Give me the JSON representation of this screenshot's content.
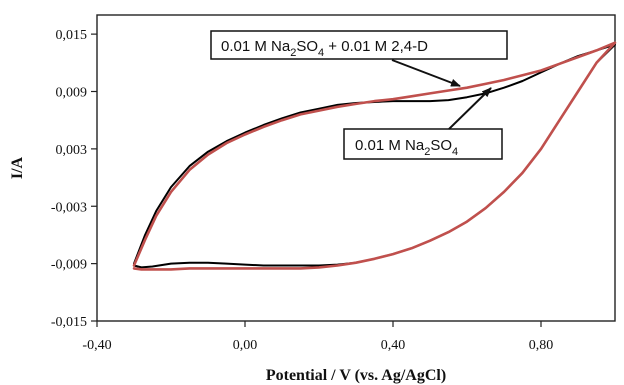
{
  "chart_data": {
    "type": "line",
    "xlabel": "Potential / V (vs. Ag/AgCl)",
    "ylabel": "I/A",
    "xlim": [
      -0.4,
      1.0
    ],
    "ylim": [
      -0.015,
      0.017
    ],
    "x_ticks": [
      {
        "value": -0.4,
        "label": "-0,40"
      },
      {
        "value": 0.0,
        "label": "0,00"
      },
      {
        "value": 0.4,
        "label": "0,40"
      },
      {
        "value": 0.8,
        "label": "0,80"
      }
    ],
    "y_ticks": [
      {
        "value": 0.015,
        "label": "0,015"
      },
      {
        "value": 0.009,
        "label": "0,009"
      },
      {
        "value": 0.003,
        "label": "0,003"
      },
      {
        "value": -0.003,
        "label": "-0,003"
      },
      {
        "value": -0.009,
        "label": "-0,009"
      },
      {
        "value": -0.015,
        "label": "-0,015"
      }
    ],
    "grid": false,
    "series": [
      {
        "name": "0.01 M Na2SO4",
        "color": "#000000",
        "x": [
          -0.3,
          -0.27,
          -0.24,
          -0.2,
          -0.15,
          -0.1,
          -0.05,
          0.0,
          0.05,
          0.1,
          0.15,
          0.2,
          0.25,
          0.3,
          0.35,
          0.4,
          0.45,
          0.5,
          0.55,
          0.6,
          0.65,
          0.7,
          0.75,
          0.8,
          0.85,
          0.9,
          0.95,
          1.0,
          0.95,
          0.9,
          0.85,
          0.8,
          0.75,
          0.7,
          0.65,
          0.6,
          0.55,
          0.5,
          0.45,
          0.4,
          0.35,
          0.3,
          0.25,
          0.2,
          0.15,
          0.1,
          0.05,
          0.0,
          -0.05,
          -0.1,
          -0.15,
          -0.2,
          -0.25,
          -0.28,
          -0.3
        ],
        "y": [
          -0.009,
          -0.006,
          -0.0035,
          -0.001,
          0.0012,
          0.0027,
          0.0038,
          0.0047,
          0.0055,
          0.0062,
          0.0068,
          0.0072,
          0.0076,
          0.0078,
          0.0079,
          0.008,
          0.008,
          0.008,
          0.0081,
          0.0084,
          0.0088,
          0.0094,
          0.0101,
          0.011,
          0.0119,
          0.0127,
          0.0133,
          0.0139,
          0.012,
          0.009,
          0.006,
          0.003,
          0.0005,
          -0.0015,
          -0.0032,
          -0.0046,
          -0.0057,
          -0.0066,
          -0.0074,
          -0.008,
          -0.0085,
          -0.0089,
          -0.0091,
          -0.0092,
          -0.0092,
          -0.0092,
          -0.0092,
          -0.0091,
          -0.009,
          -0.0089,
          -0.0089,
          -0.009,
          -0.0093,
          -0.0094,
          -0.0092
        ]
      },
      {
        "name": "0.01 M Na2SO4 + 0.01 M 2,4-D",
        "color": "#c0504d",
        "x": [
          -0.3,
          -0.27,
          -0.24,
          -0.2,
          -0.15,
          -0.1,
          -0.05,
          0.0,
          0.05,
          0.1,
          0.15,
          0.2,
          0.25,
          0.3,
          0.35,
          0.4,
          0.45,
          0.5,
          0.55,
          0.6,
          0.65,
          0.7,
          0.75,
          0.8,
          0.85,
          0.9,
          0.95,
          1.0,
          0.95,
          0.9,
          0.85,
          0.8,
          0.75,
          0.7,
          0.65,
          0.6,
          0.55,
          0.5,
          0.45,
          0.4,
          0.35,
          0.3,
          0.25,
          0.2,
          0.15,
          0.1,
          0.05,
          0.0,
          -0.05,
          -0.1,
          -0.15,
          -0.2,
          -0.25,
          -0.28,
          -0.3
        ],
        "y": [
          -0.0092,
          -0.0065,
          -0.004,
          -0.0015,
          0.0008,
          0.0024,
          0.0036,
          0.0045,
          0.0053,
          0.006,
          0.0066,
          0.007,
          0.0074,
          0.0077,
          0.008,
          0.0082,
          0.0085,
          0.0088,
          0.0091,
          0.0094,
          0.0098,
          0.0102,
          0.0107,
          0.0112,
          0.0119,
          0.0126,
          0.0133,
          0.0141,
          0.012,
          0.009,
          0.006,
          0.003,
          0.0005,
          -0.0015,
          -0.0032,
          -0.0046,
          -0.0057,
          -0.0066,
          -0.0074,
          -0.008,
          -0.0085,
          -0.0089,
          -0.0092,
          -0.0094,
          -0.0095,
          -0.0095,
          -0.0095,
          -0.0095,
          -0.0095,
          -0.0095,
          -0.0095,
          -0.0096,
          -0.0096,
          -0.0096,
          -0.0095
        ]
      }
    ],
    "annotations": [
      {
        "id": "upper",
        "text_parts": [
          "0.01 M Na",
          "2",
          "SO",
          "4",
          " + 0.01 M 2,4-D"
        ],
        "points_to_x": 0.62,
        "points_to_y": 0.0092
      },
      {
        "id": "lower",
        "text_parts": [
          "0.01 M Na",
          "2",
          "SO",
          "4"
        ],
        "points_to_x": 0.67,
        "points_to_y": 0.0088
      }
    ]
  }
}
